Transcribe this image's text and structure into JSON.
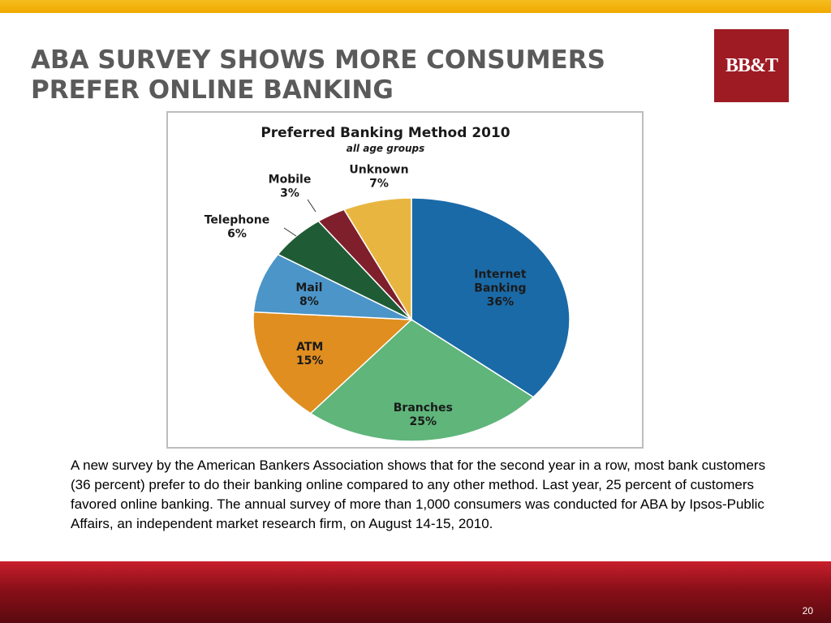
{
  "slide": {
    "title_line1": "ABA SURVEY SHOWS MORE CONSUMERS",
    "title_line2": "PREFER ONLINE BANKING",
    "logo_text": "BB&T",
    "body": "A new survey by the American Bankers Association shows that for the second year in a row, most bank customers (36 percent) prefer to do their banking online compared to any other method.   Last year, 25 percent of customers favored online banking.  The annual survey of more than 1,000 consumers was conducted for ABA by Ipsos-Public Affairs, an independent market research firm, on August 14-15, 2010.",
    "page_number": "20",
    "colors": {
      "accent_bar": "#f0a800",
      "brand_red": "#9e1b24",
      "title_gray": "#5a5a5a"
    }
  },
  "chart_data": {
    "type": "pie",
    "title": "Preferred Banking Method 2010",
    "subtitle": "all age groups",
    "slices": [
      {
        "label": "Internet Banking",
        "line1": "Internet",
        "line2": "Banking",
        "value": 36,
        "pct": "36%",
        "color": "#1a6aa8"
      },
      {
        "label": "Branches",
        "line1": "Branches",
        "line2": "",
        "value": 25,
        "pct": "25%",
        "color": "#5fb57a"
      },
      {
        "label": "ATM",
        "line1": "ATM",
        "line2": "",
        "value": 15,
        "pct": "15%",
        "color": "#e08e1f"
      },
      {
        "label": "Mail",
        "line1": "Mail",
        "line2": "",
        "value": 8,
        "pct": "8%",
        "color": "#4b95c8"
      },
      {
        "label": "Telephone",
        "line1": "Telephone",
        "line2": "",
        "value": 6,
        "pct": "6%",
        "color": "#1f5c36"
      },
      {
        "label": "Mobile",
        "line1": "Mobile",
        "line2": "",
        "value": 3,
        "pct": "3%",
        "color": "#7f1f2c"
      },
      {
        "label": "Unknown",
        "line1": "Unknown",
        "line2": "",
        "value": 7,
        "pct": "7%",
        "color": "#e8b640"
      }
    ]
  }
}
